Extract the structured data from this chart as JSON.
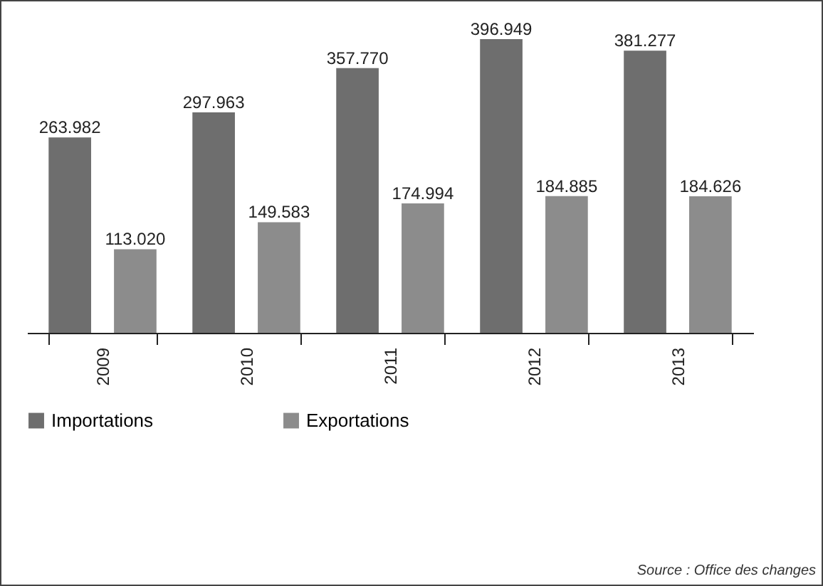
{
  "chart_data": {
    "type": "bar",
    "categories": [
      "2009",
      "2010",
      "2011",
      "2012",
      "2013"
    ],
    "series": [
      {
        "name": "Importations",
        "color": "#6e6e6e",
        "values": [
          263.982,
          297.963,
          357.77,
          396.949,
          381.277
        ],
        "value_labels": [
          "263.982",
          "297.963",
          "357.770",
          "396.949",
          "381.277"
        ]
      },
      {
        "name": "Exportations",
        "color": "#8c8c8c",
        "values": [
          113.02,
          149.583,
          174.994,
          184.885,
          184.626
        ],
        "value_labels": [
          "113.020",
          "149.583",
          "174.994",
          "184.885",
          "184.626"
        ]
      }
    ],
    "legend": "bottom",
    "grid": false,
    "tick_labels": "x",
    "annotations": [
      "Source : Office des changes"
    ]
  }
}
